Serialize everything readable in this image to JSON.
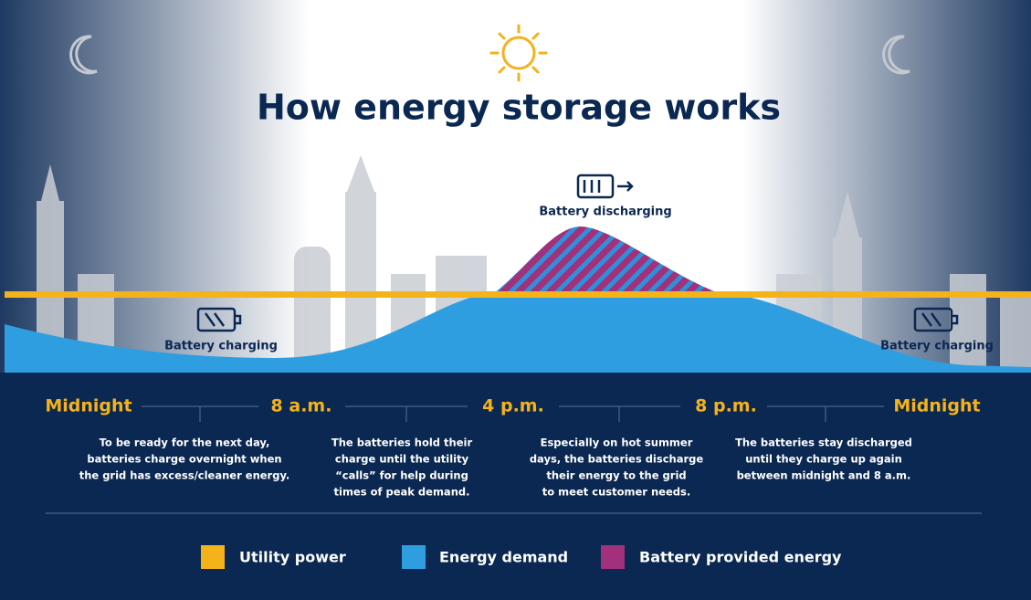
{
  "header": {
    "title": "How energy storage works"
  },
  "diagram": {
    "discharging_label": "Battery discharging",
    "charging_left": "Battery charging",
    "charging_right": "Battery charging"
  },
  "timeline": {
    "labels": [
      "Midnight",
      "8 a.m.",
      "4 p.m.",
      "8 p.m.",
      "Midnight"
    ],
    "descriptions": [
      [
        "To be ready for the next day,",
        "batteries charge overnight when",
        "the grid has excess/cleaner energy."
      ],
      [
        "The batteries hold their",
        "charge until the utility",
        "“calls” for help during",
        "times of peak demand."
      ],
      [
        "Especially on hot summer",
        "days, the batteries discharge",
        "their energy to the grid",
        "to meet customer needs."
      ],
      [
        "The batteries stay discharged",
        "until they charge up again",
        "between midnight and 8 a.m."
      ]
    ]
  },
  "legend": [
    "Utility power",
    "Energy demand",
    "Battery provided energy"
  ]
}
